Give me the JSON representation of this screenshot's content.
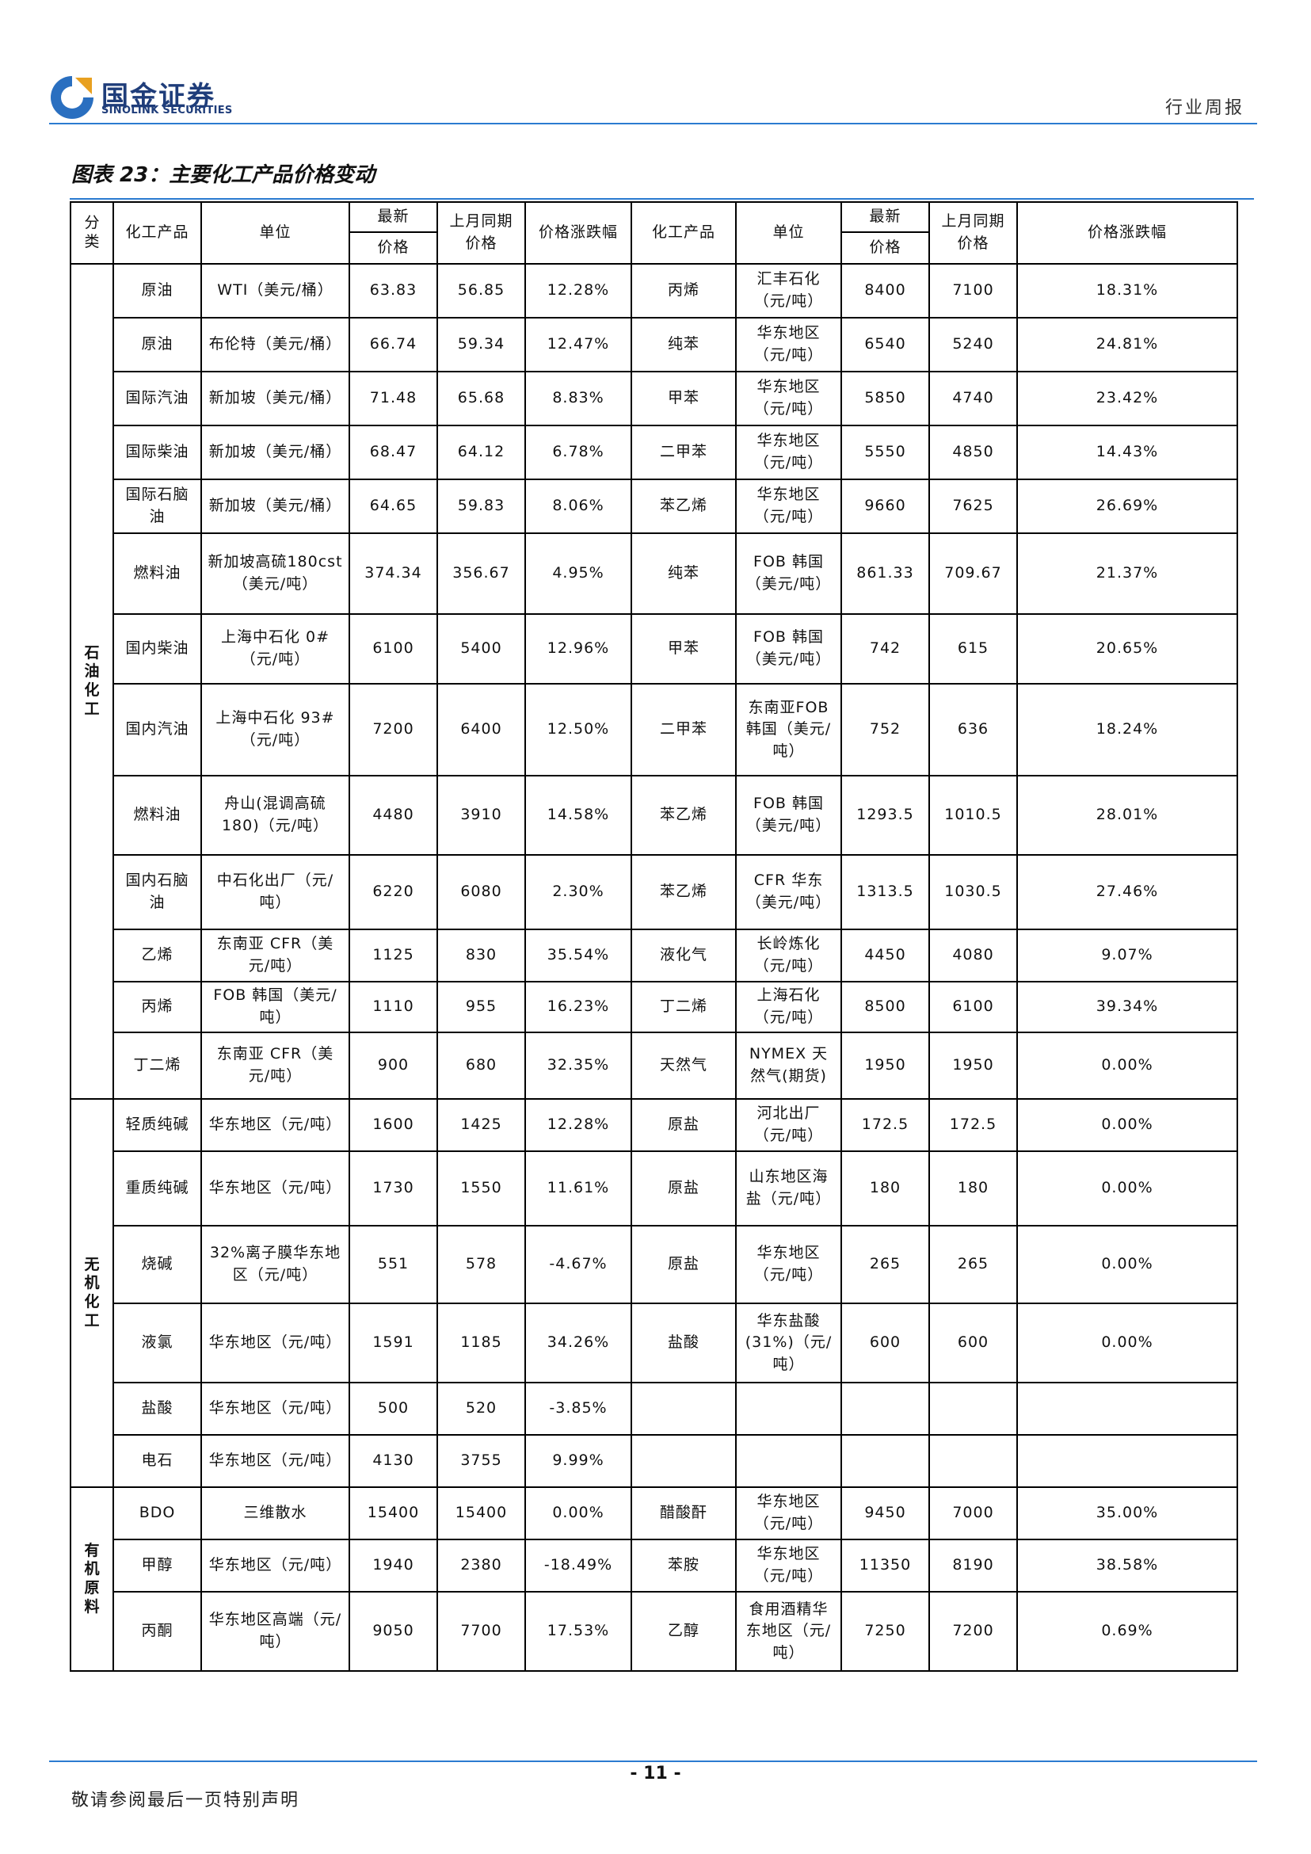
{
  "header": {
    "logo_cn": "国金证券",
    "logo_en": "SINOLINK SECURITIES",
    "report_type": "行业周报"
  },
  "figure_title": "图表 23：主要化工产品价格变动",
  "table": {
    "headers": {
      "category": "分类",
      "product": "化工产品",
      "unit": "单位",
      "latest_price": "最新",
      "latest_price_sub": "价格",
      "prev_month": "上月同期价格",
      "change": "价格涨跌幅",
      "product2": "化工产品",
      "unit2": "单位",
      "latest_price2": "最新",
      "latest_price2_sub": "价格",
      "prev_month2": "上月同期价格",
      "change2": "价格涨跌幅"
    },
    "categories": [
      "石油化工",
      "无机化工",
      "有机原料"
    ],
    "rows": [
      {
        "p1": "原油",
        "u1": "WTI（美元/桶）",
        "a1": "63.83",
        "b1": "56.85",
        "c1": "12.28%",
        "p2": "丙烯",
        "u2": "汇丰石化（元/吨）",
        "a2": "8400",
        "b2": "7100",
        "c2": "18.31%"
      },
      {
        "p1": "原油",
        "u1": "布伦特（美元/桶）",
        "a1": "66.74",
        "b1": "59.34",
        "c1": "12.47%",
        "p2": "纯苯",
        "u2": "华东地区（元/吨）",
        "a2": "6540",
        "b2": "5240",
        "c2": "24.81%"
      },
      {
        "p1": "国际汽油",
        "u1": "新加坡（美元/桶）",
        "a1": "71.48",
        "b1": "65.68",
        "c1": "8.83%",
        "p2": "甲苯",
        "u2": "华东地区（元/吨）",
        "a2": "5850",
        "b2": "4740",
        "c2": "23.42%"
      },
      {
        "p1": "国际柴油",
        "u1": "新加坡（美元/桶）",
        "a1": "68.47",
        "b1": "64.12",
        "c1": "6.78%",
        "p2": "二甲苯",
        "u2": "华东地区（元/吨）",
        "a2": "5550",
        "b2": "4850",
        "c2": "14.43%"
      },
      {
        "p1": "国际石脑油",
        "u1": "新加坡（美元/桶）",
        "a1": "64.65",
        "b1": "59.83",
        "c1": "8.06%",
        "p2": "苯乙烯",
        "u2": "华东地区（元/吨）",
        "a2": "9660",
        "b2": "7625",
        "c2": "26.69%"
      },
      {
        "p1": "燃料油",
        "u1": "新加坡高硫180cst（美元/吨）",
        "a1": "374.34",
        "b1": "356.67",
        "c1": "4.95%",
        "p2": "纯苯",
        "u2": "FOB 韩国（美元/吨）",
        "a2": "861.33",
        "b2": "709.67",
        "c2": "21.37%"
      },
      {
        "p1": "国内柴油",
        "u1": "上海中石化 0#（元/吨）",
        "a1": "6100",
        "b1": "5400",
        "c1": "12.96%",
        "p2": "甲苯",
        "u2": "FOB 韩国（美元/吨）",
        "a2": "742",
        "b2": "615",
        "c2": "20.65%"
      },
      {
        "p1": "国内汽油",
        "u1": "上海中石化 93#（元/吨）",
        "a1": "7200",
        "b1": "6400",
        "c1": "12.50%",
        "p2": "二甲苯",
        "u2": "东南亚FOB 韩国（美元/吨）",
        "a2": "752",
        "b2": "636",
        "c2": "18.24%"
      },
      {
        "p1": "燃料油",
        "u1": "舟山(混调高硫180)（元/吨）",
        "a1": "4480",
        "b1": "3910",
        "c1": "14.58%",
        "p2": "苯乙烯",
        "u2": "FOB 韩国（美元/吨）",
        "a2": "1293.5",
        "b2": "1010.5",
        "c2": "28.01%"
      },
      {
        "p1": "国内石脑油",
        "u1": "中石化出厂（元/吨）",
        "a1": "6220",
        "b1": "6080",
        "c1": "2.30%",
        "p2": "苯乙烯",
        "u2": "CFR 华东（美元/吨）",
        "a2": "1313.5",
        "b2": "1030.5",
        "c2": "27.46%"
      },
      {
        "p1": "乙烯",
        "u1": "东南亚 CFR（美元/吨）",
        "a1": "1125",
        "b1": "830",
        "c1": "35.54%",
        "p2": "液化气",
        "u2": "长岭炼化（元/吨）",
        "a2": "4450",
        "b2": "4080",
        "c2": "9.07%"
      },
      {
        "p1": "丙烯",
        "u1": "FOB 韩国（美元/吨）",
        "a1": "1110",
        "b1": "955",
        "c1": "16.23%",
        "p2": "丁二烯",
        "u2": "上海石化（元/吨）",
        "a2": "8500",
        "b2": "6100",
        "c2": "39.34%"
      },
      {
        "p1": "丁二烯",
        "u1": "东南亚 CFR（美元/吨）",
        "a1": "900",
        "b1": "680",
        "c1": "32.35%",
        "p2": "天然气",
        "u2": "NYMEX 天然气(期货)",
        "a2": "1950",
        "b2": "1950",
        "c2": "0.00%"
      },
      {
        "p1": "轻质纯碱",
        "u1": "华东地区（元/吨）",
        "a1": "1600",
        "b1": "1425",
        "c1": "12.28%",
        "p2": "原盐",
        "u2": "河北出厂（元/吨）",
        "a2": "172.5",
        "b2": "172.5",
        "c2": "0.00%"
      },
      {
        "p1": "重质纯碱",
        "u1": "华东地区（元/吨）",
        "a1": "1730",
        "b1": "1550",
        "c1": "11.61%",
        "p2": "原盐",
        "u2": "山东地区海盐（元/吨）",
        "a2": "180",
        "b2": "180",
        "c2": "0.00%"
      },
      {
        "p1": "烧碱",
        "u1": "32%离子膜华东地区（元/吨）",
        "a1": "551",
        "b1": "578",
        "c1": "-4.67%",
        "p2": "原盐",
        "u2": "华东地区（元/吨）",
        "a2": "265",
        "b2": "265",
        "c2": "0.00%"
      },
      {
        "p1": "液氯",
        "u1": "华东地区（元/吨）",
        "a1": "1591",
        "b1": "1185",
        "c1": "34.26%",
        "p2": "盐酸",
        "u2": "华东盐酸(31%)（元/吨）",
        "a2": "600",
        "b2": "600",
        "c2": "0.00%"
      },
      {
        "p1": "盐酸",
        "u1": "华东地区（元/吨）",
        "a1": "500",
        "b1": "520",
        "c1": "-3.85%",
        "p2": "",
        "u2": "",
        "a2": "",
        "b2": "",
        "c2": ""
      },
      {
        "p1": "电石",
        "u1": "华东地区（元/吨）",
        "a1": "4130",
        "b1": "3755",
        "c1": "9.99%",
        "p2": "",
        "u2": "",
        "a2": "",
        "b2": "",
        "c2": ""
      },
      {
        "p1": "BDO",
        "u1": "三维散水",
        "a1": "15400",
        "b1": "15400",
        "c1": "0.00%",
        "p2": "醋酸酐",
        "u2": "华东地区（元/吨）",
        "a2": "9450",
        "b2": "7000",
        "c2": "35.00%"
      },
      {
        "p1": "甲醇",
        "u1": "华东地区（元/吨）",
        "a1": "1940",
        "b1": "2380",
        "c1": "-18.49%",
        "p2": "苯胺",
        "u2": "华东地区（元/吨）",
        "a2": "11350",
        "b2": "8190",
        "c2": "38.58%"
      },
      {
        "p1": "丙酮",
        "u1": "华东地区高端（元/吨）",
        "a1": "9050",
        "b1": "7700",
        "c1": "17.53%",
        "p2": "乙醇",
        "u2": "食用酒精华东地区（元/吨）",
        "a2": "7250",
        "b2": "7200",
        "c2": "0.69%"
      }
    ]
  },
  "footer": {
    "page_number": "- 11 -",
    "disclaimer": "敬请参阅最后一页特别声明"
  }
}
